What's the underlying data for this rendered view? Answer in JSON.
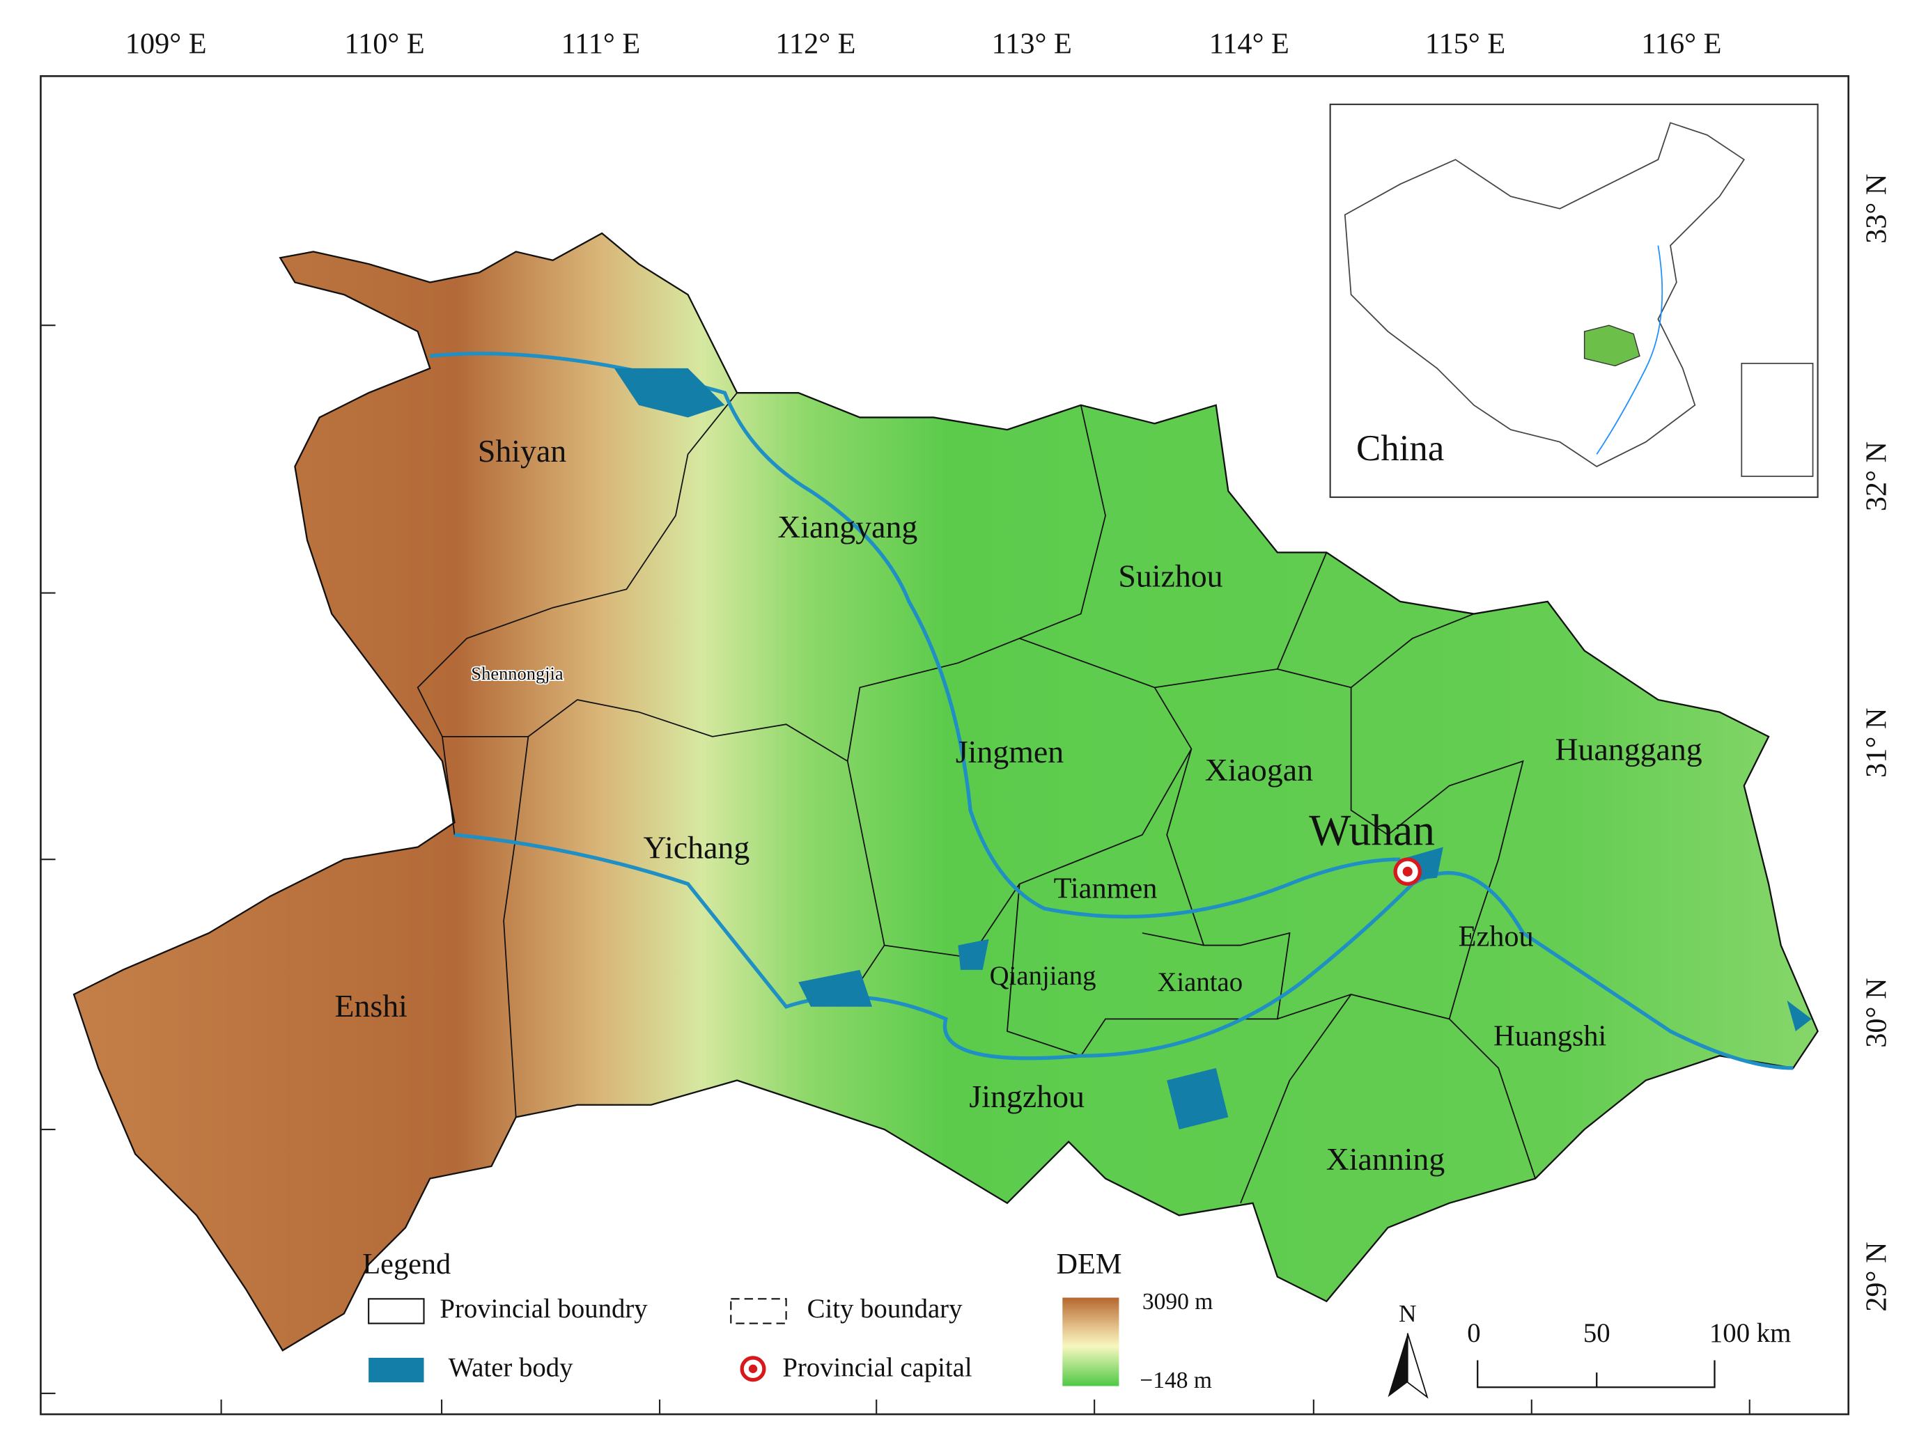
{
  "longitude_labels": [
    "109° E",
    "110° E",
    "111° E",
    "112° E",
    "113° E",
    "114° E",
    "115° E",
    "116° E"
  ],
  "latitude_labels": [
    "33° N",
    "32° N",
    "31° N",
    "30° N",
    "29° N"
  ],
  "cities": [
    "Shiyan",
    "Xiangyang",
    "Suizhou",
    "Shennongjia",
    "Jingmen",
    "Xiaogan",
    "Huanggang",
    "Yichang",
    "Wuhan",
    "Tianmen",
    "Ezhou",
    "Enshi",
    "Qianjiang",
    "Xiantao",
    "Huangshi",
    "Jingzhou",
    "Xianning"
  ],
  "inset": {
    "label": "China"
  },
  "legend": {
    "title": "Legend",
    "items": [
      "Provincial boundry",
      "City boundary",
      "Water body",
      "Provincial capital"
    ]
  },
  "dem": {
    "title": "DEM",
    "max_label": "3090 m",
    "min_label": "−148 m"
  },
  "north_arrow": "N",
  "scale_bar": {
    "labels": [
      "0",
      "50",
      "100 km"
    ]
  }
}
